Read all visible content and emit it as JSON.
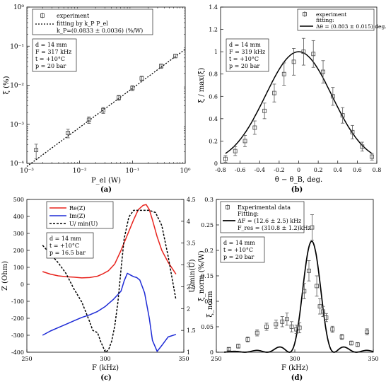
{
  "chart_data": [
    {
      "id": "a",
      "type": "scatter",
      "panel_label": "(a)",
      "xlabel": "P_el (W)",
      "ylabel": "ξ (%)",
      "xscale": "log",
      "yscale": "log",
      "xlim": [
        0.001,
        1
      ],
      "ylim": [
        0.0001,
        1
      ],
      "x_ticks": [
        0.001,
        0.01,
        0.1,
        1
      ],
      "x_tick_labels": [
        "10⁻³",
        "10⁻²",
        "10⁻¹",
        "10⁰"
      ],
      "y_ticks": [
        0.0001,
        0.001,
        0.01,
        0.1,
        1
      ],
      "y_tick_labels": [
        "10⁻⁴",
        "10⁻³",
        "10⁻²",
        "10⁻¹",
        "10⁰"
      ],
      "legend_placement": "top-left",
      "legend": [
        "experiment",
        "fitting by k_P P_el",
        "k_P=(0.0833 ± 0.0036) (%/W)"
      ],
      "params": [
        "d = 14 mm",
        "F = 317 kHz",
        "t = +10°C",
        "p = 20 bar"
      ],
      "series": [
        {
          "name": "experiment",
          "style": "markers",
          "x": [
            0.0015,
            0.006,
            0.015,
            0.028,
            0.055,
            0.1,
            0.15,
            0.35,
            0.65
          ],
          "y": [
            0.00022,
            0.0006,
            0.0013,
            0.0023,
            0.0048,
            0.0085,
            0.015,
            0.031,
            0.056
          ],
          "err": [
            9e-05,
            0.00015,
            0.00025,
            0.0004,
            0.0007,
            0.0012,
            0.002,
            0.004,
            0.006
          ]
        },
        {
          "name": "fitting by k_P P_el",
          "style": "dotted-line",
          "x": [
            0.001,
            1
          ],
          "y": [
            8.33e-05,
            0.0833
          ]
        }
      ]
    },
    {
      "id": "b",
      "type": "scatter",
      "panel_label": "(b)",
      "xlabel": "θ − θ_B, deg.",
      "ylabel": "ξ / max(ξ)",
      "xlim": [
        -0.8,
        0.8
      ],
      "ylim": [
        0,
        1.4
      ],
      "x_ticks": [
        -0.8,
        -0.6,
        -0.4,
        -0.2,
        0,
        0.2,
        0.4,
        0.6,
        0.8
      ],
      "x_tick_labels": [
        "-0.8",
        "-0.6",
        "-0.4",
        "-0.2",
        "0",
        "0.2",
        "0.4",
        "0.6",
        "0.8"
      ],
      "y_ticks": [
        0,
        0.2,
        0.4,
        0.6,
        0.8,
        1,
        1.2,
        1.4
      ],
      "y_tick_labels": [
        "0",
        "0.2",
        "0.4",
        "0.6",
        "0.8",
        "1",
        "1.2",
        "1.4"
      ],
      "legend_placement": "top-right",
      "legend": [
        "experiment",
        "fitting:",
        "Δθ = (0.803 ± 0.015) deg."
      ],
      "params": [
        "d = 14 mm",
        "F = 319 kHz",
        "t = +10°C",
        "p = 20 bar"
      ],
      "fit_fwhm": 0.803,
      "series": [
        {
          "name": "experiment",
          "style": "markers",
          "x": [
            -0.75,
            -0.65,
            -0.55,
            -0.45,
            -0.35,
            -0.25,
            -0.15,
            -0.05,
            0.05,
            0.15,
            0.25,
            0.35,
            0.45,
            0.55,
            0.65,
            0.75
          ],
          "y": [
            0.04,
            0.11,
            0.2,
            0.32,
            0.47,
            0.63,
            0.8,
            0.91,
            1.0,
            0.98,
            0.82,
            0.6,
            0.43,
            0.28,
            0.15,
            0.06
          ],
          "err": [
            0.03,
            0.04,
            0.05,
            0.06,
            0.07,
            0.08,
            0.1,
            0.12,
            0.12,
            0.12,
            0.1,
            0.08,
            0.07,
            0.06,
            0.04,
            0.03
          ]
        },
        {
          "name": "fitting",
          "style": "solid-line"
        }
      ]
    },
    {
      "id": "c",
      "type": "line",
      "panel_label": "(c)",
      "xlabel": "F (kHz)",
      "ylabel": "Z (Ohm)",
      "ylabel_right": "U/min(U)",
      "ylabel_right2": "ξ_norm (%/W)",
      "xlim": [
        250,
        350
      ],
      "ylim": [
        -400,
        500
      ],
      "ylim_right": [
        1,
        4.5
      ],
      "x_ticks": [
        250,
        300,
        350
      ],
      "x_tick_labels": [
        "250",
        "300",
        "350"
      ],
      "y_ticks": [
        -400,
        -300,
        -200,
        -100,
        0,
        100,
        200,
        300,
        400,
        500
      ],
      "y_tick_labels": [
        "-400",
        "-300",
        "-200",
        "-100",
        "0",
        "100",
        "200",
        "300",
        "400",
        "500"
      ],
      "y_right_ticks": [
        1,
        1.5,
        2,
        2.5,
        3,
        3.5,
        4,
        4.5
      ],
      "y_right_tick_labels": [
        "1",
        "1.5",
        "2",
        "2.5",
        "3",
        "3.5",
        "4",
        "4.5"
      ],
      "legend_placement": "top-left",
      "legend": [
        "Re(Z)",
        "Im(Z)",
        "U/ min(U)"
      ],
      "params": [
        "d = 14 mm",
        "t = +10°C",
        "p = 16.5 bar"
      ],
      "colors": {
        "re": "#e8231d",
        "im": "#1e2bd6",
        "u": "#000000"
      },
      "series": [
        {
          "name": "Re(Z)",
          "axis": "left",
          "x": [
            260,
            265,
            270,
            275,
            280,
            285,
            290,
            295,
            298,
            302,
            306,
            310,
            314,
            318,
            321,
            324,
            326,
            328,
            330,
            333,
            336,
            340,
            345
          ],
          "y": [
            75,
            60,
            50,
            45,
            42,
            38,
            40,
            48,
            60,
            80,
            120,
            200,
            290,
            380,
            440,
            465,
            470,
            440,
            380,
            280,
            200,
            130,
            60
          ]
        },
        {
          "name": "Im(Z)",
          "axis": "left",
          "x": [
            260,
            265,
            270,
            275,
            280,
            285,
            290,
            295,
            300,
            305,
            310,
            312,
            314,
            316,
            318,
            320,
            322,
            325,
            328,
            330,
            333,
            336,
            340,
            345
          ],
          "y": [
            -300,
            -275,
            -255,
            -235,
            -215,
            -195,
            -180,
            -160,
            -130,
            -90,
            -40,
            20,
            65,
            55,
            45,
            40,
            25,
            -50,
            -200,
            -330,
            -395,
            -360,
            -310,
            -295
          ]
        },
        {
          "name": "U/ min(U)",
          "axis": "right",
          "style": "dashed",
          "x": [
            260,
            265,
            270,
            275,
            280,
            285,
            290,
            292,
            295,
            297,
            300,
            302,
            304,
            306,
            308,
            310,
            312,
            315,
            318,
            321,
            324,
            328,
            332,
            336,
            340,
            345
          ],
          "y": [
            3.45,
            3.25,
            3.05,
            2.8,
            2.45,
            2.15,
            1.7,
            1.5,
            1.45,
            1.25,
            1.0,
            1.05,
            1.25,
            1.6,
            2.15,
            2.9,
            3.6,
            4.1,
            4.25,
            4.25,
            4.25,
            4.25,
            4.2,
            3.9,
            3.2,
            2.2
          ]
        }
      ]
    },
    {
      "id": "d",
      "type": "scatter",
      "panel_label": "(d)",
      "xlabel": "F (kHz)",
      "ylabel": "ξ_norm",
      "xlim": [
        250,
        350
      ],
      "ylim": [
        0,
        0.3
      ],
      "x_ticks": [
        250,
        300,
        350
      ],
      "x_tick_labels": [
        "250",
        "300",
        "350"
      ],
      "y_ticks": [
        0,
        0.05,
        0.1,
        0.15,
        0.2,
        0.25,
        0.3
      ],
      "y_tick_labels": [
        "0",
        "0.05",
        "0.1",
        "0.15",
        "0.2",
        "0.25",
        "0.3"
      ],
      "legend_placement": "top-left",
      "legend": [
        "Experimental data",
        "Fitting:",
        "ΔF = (12.6 ± 2.5) kHz",
        "F_res = (310.8 ± 1.2)kHz"
      ],
      "params": [
        "d = 14 mm",
        "t = +10°C",
        "p = 20 bar"
      ],
      "fit_center": 310.8,
      "fit_width": 12.6,
      "fit_peak": 0.218,
      "series": [
        {
          "name": "Experimental data",
          "style": "markers",
          "x": [
            258,
            264,
            270,
            276,
            282,
            288,
            292,
            295,
            298,
            301,
            303,
            306,
            309,
            311,
            314,
            316,
            318,
            320,
            324,
            330,
            336,
            340,
            346
          ],
          "y": [
            0.006,
            0.012,
            0.025,
            0.038,
            0.05,
            0.055,
            0.06,
            0.065,
            0.05,
            0.045,
            0.048,
            0.12,
            0.16,
            0.245,
            0.13,
            0.09,
            0.08,
            0.068,
            0.045,
            0.03,
            0.018,
            0.015,
            0.04
          ],
          "err": [
            0.003,
            0.004,
            0.005,
            0.006,
            0.007,
            0.008,
            0.01,
            0.012,
            0.01,
            0.008,
            0.01,
            0.015,
            0.02,
            0.025,
            0.02,
            0.015,
            0.01,
            0.008,
            0.006,
            0.005,
            0.004,
            0.004,
            0.006
          ]
        },
        {
          "name": "Fitting",
          "style": "solid-line"
        }
      ]
    }
  ]
}
